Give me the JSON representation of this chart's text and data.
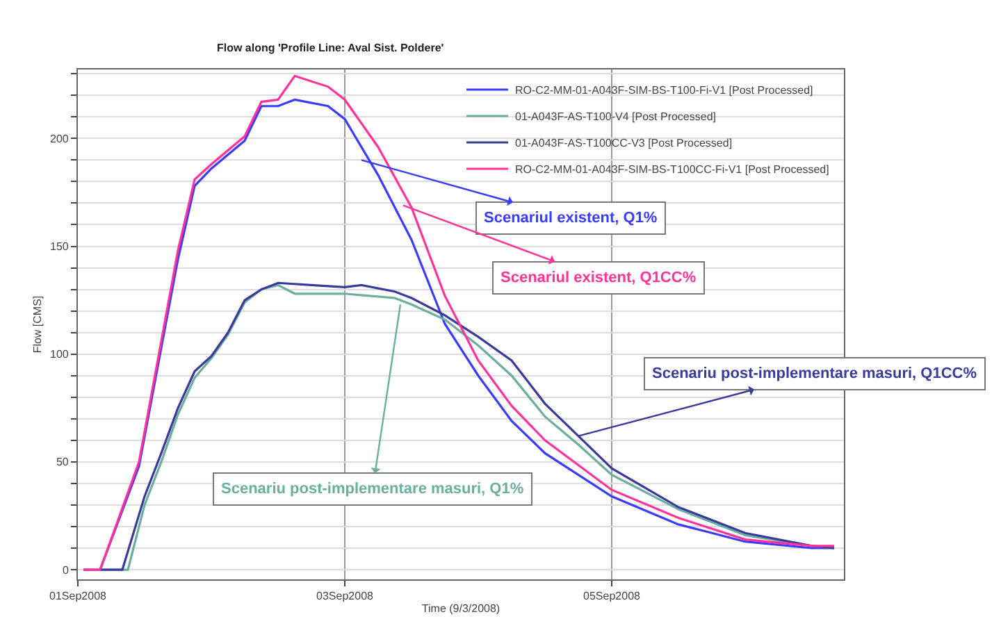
{
  "chart_data": {
    "type": "line",
    "title": "Flow along 'Profile Line: Aval Sist. Poldere'",
    "xlabel": "Time (9/3/2008)",
    "ylabel": "Flow [CMS]",
    "xlim": [
      "2008-09-01T00:00",
      "2008-09-06T17:45"
    ],
    "xticks": [
      {
        "value": "2008-09-01",
        "label": "01Sep2008"
      },
      {
        "value": "2008-09-03",
        "label": "03Sep2008"
      },
      {
        "value": "2008-09-05",
        "label": "05Sep2008"
      }
    ],
    "ylim": [
      -4.5,
      232
    ],
    "yticks": [
      0,
      {
        "value": 10,
        "label": null
      },
      {
        "value": 20,
        "label": null
      },
      {
        "value": 30,
        "label": null
      },
      {
        "value": 40,
        "label": null
      },
      50,
      {
        "value": 60,
        "label": null
      },
      {
        "value": 70,
        "label": null
      },
      {
        "value": 80,
        "label": null
      },
      {
        "value": 90,
        "label": null
      },
      100,
      {
        "value": 110,
        "label": null
      },
      {
        "value": 120,
        "label": null
      },
      {
        "value": 130,
        "label": null
      },
      {
        "value": 140,
        "label": null
      },
      150,
      {
        "value": 160,
        "label": null
      },
      {
        "value": 170,
        "label": null
      },
      {
        "value": 180,
        "label": null
      },
      {
        "value": 190,
        "label": null
      },
      200,
      {
        "value": 210,
        "label": null
      },
      {
        "value": 220,
        "label": null
      },
      {
        "value": 230,
        "label": null
      }
    ],
    "grid": true,
    "legend": "top right",
    "marker": "none",
    "line_style": "solid",
    "series": [
      {
        "name": "RO-C2-MM-01-A043F-SIM-BS-T100-Fi-V1 [Post Processed]",
        "color": "#3b3bff",
        "x": [
          "2008-09-01T01:00",
          "2008-09-01T04:00",
          "2008-09-01T11:00",
          "2008-09-01T18:00",
          "2008-09-01T21:00",
          "2008-09-02T00:00",
          "2008-09-02T06:00",
          "2008-09-02T09:00",
          "2008-09-02T12:00",
          "2008-09-02T15:00",
          "2008-09-02T21:00",
          "2008-09-03T00:00",
          "2008-09-03T06:00",
          "2008-09-03T12:00",
          "2008-09-03T18:00",
          "2008-09-04T00:00",
          "2008-09-04T06:00",
          "2008-09-04T12:00",
          "2008-09-05T00:00",
          "2008-09-05T12:00",
          "2008-09-06T00:00",
          "2008-09-06T12:00",
          "2008-09-06T16:00"
        ],
        "values": [
          0,
          0,
          48,
          144,
          178,
          186,
          199,
          215,
          215,
          218,
          215,
          209,
          183,
          153,
          114,
          90,
          69,
          54,
          34,
          21,
          13,
          10,
          10
        ]
      },
      {
        "name": "01-A043F-AS-T100-V4 [Post Processed]",
        "color": "#6aaea0",
        "x": [
          "2008-09-01T04:00",
          "2008-09-01T09:00",
          "2008-09-01T12:00",
          "2008-09-01T15:00",
          "2008-09-01T18:00",
          "2008-09-01T21:00",
          "2008-09-02T00:00",
          "2008-09-02T03:00",
          "2008-09-02T06:00",
          "2008-09-02T09:00",
          "2008-09-02T12:00",
          "2008-09-02T15:00",
          "2008-09-02T21:00",
          "2008-09-03T00:00",
          "2008-09-03T09:00",
          "2008-09-03T12:00",
          "2008-09-03T18:00",
          "2008-09-04T00:00",
          "2008-09-04T06:00",
          "2008-09-04T12:00",
          "2008-09-04T18:00",
          "2008-09-05T00:00",
          "2008-09-05T12:00",
          "2008-09-06T00:00",
          "2008-09-06T12:00",
          "2008-09-06T16:00"
        ],
        "values": [
          0,
          0,
          30,
          50,
          72,
          89,
          98,
          109,
          124,
          130,
          132,
          128,
          128,
          128,
          126,
          123,
          116,
          104,
          90,
          71,
          58,
          44,
          28,
          16,
          11,
          10
        ]
      },
      {
        "name": "01-A043F-AS-T100CC-V3 [Post Processed]",
        "color": "#3a3a9a",
        "x": [
          "2008-09-01T04:00",
          "2008-09-01T08:00",
          "2008-09-01T12:00",
          "2008-09-01T15:00",
          "2008-09-01T18:00",
          "2008-09-01T21:00",
          "2008-09-02T00:00",
          "2008-09-02T03:00",
          "2008-09-02T06:00",
          "2008-09-02T09:00",
          "2008-09-02T12:00",
          "2008-09-02T18:00",
          "2008-09-03T00:00",
          "2008-09-03T03:00",
          "2008-09-03T09:00",
          "2008-09-03T12:00",
          "2008-09-03T18:00",
          "2008-09-04T00:00",
          "2008-09-04T06:00",
          "2008-09-04T12:00",
          "2008-09-04T18:00",
          "2008-09-05T00:00",
          "2008-09-05T12:00",
          "2008-09-06T00:00",
          "2008-09-06T12:00",
          "2008-09-06T16:00"
        ],
        "values": [
          0,
          0,
          34,
          54,
          75,
          92,
          99,
          110,
          125,
          130,
          133,
          132,
          131,
          132,
          129,
          126,
          118,
          108,
          97,
          77,
          62,
          47,
          29,
          17,
          11,
          10
        ]
      },
      {
        "name": "RO-C2-MM-01-A043F-SIM-BS-T100CC-Fi-V1 [Post Processed]",
        "color": "#ff3399",
        "x": [
          "2008-09-01T01:00",
          "2008-09-01T04:00",
          "2008-09-01T11:00",
          "2008-09-01T18:00",
          "2008-09-01T21:00",
          "2008-09-02T00:00",
          "2008-09-02T06:00",
          "2008-09-02T09:00",
          "2008-09-02T12:00",
          "2008-09-02T15:00",
          "2008-09-02T21:00",
          "2008-09-03T00:00",
          "2008-09-03T06:00",
          "2008-09-03T12:00",
          "2008-09-03T18:00",
          "2008-09-04T00:00",
          "2008-09-04T06:00",
          "2008-09-04T12:00",
          "2008-09-05T00:00",
          "2008-09-05T12:00",
          "2008-09-06T00:00",
          "2008-09-06T12:00",
          "2008-09-06T16:00"
        ],
        "values": [
          0,
          0,
          50,
          148,
          181,
          188,
          201,
          217,
          218,
          229,
          224,
          218,
          196,
          168,
          127,
          97,
          76,
          60,
          37,
          24,
          14,
          11,
          11
        ]
      }
    ],
    "annotations": [
      {
        "text": "Scenariul existent, Q1%",
        "x": "2008-09-03T03:00",
        "y": 190
      },
      {
        "text": "Scenariul existent, Q1CC%",
        "x": "2008-09-03T10:30",
        "y": 169
      },
      {
        "text": "Scenariu post-implementare masuri, Q1CC%",
        "x": "2008-09-04T18:00",
        "y": 62
      },
      {
        "text": "Scenariu post-implementare masuri, Q1%",
        "x": "2008-09-03T10:00",
        "y": 123
      }
    ]
  }
}
